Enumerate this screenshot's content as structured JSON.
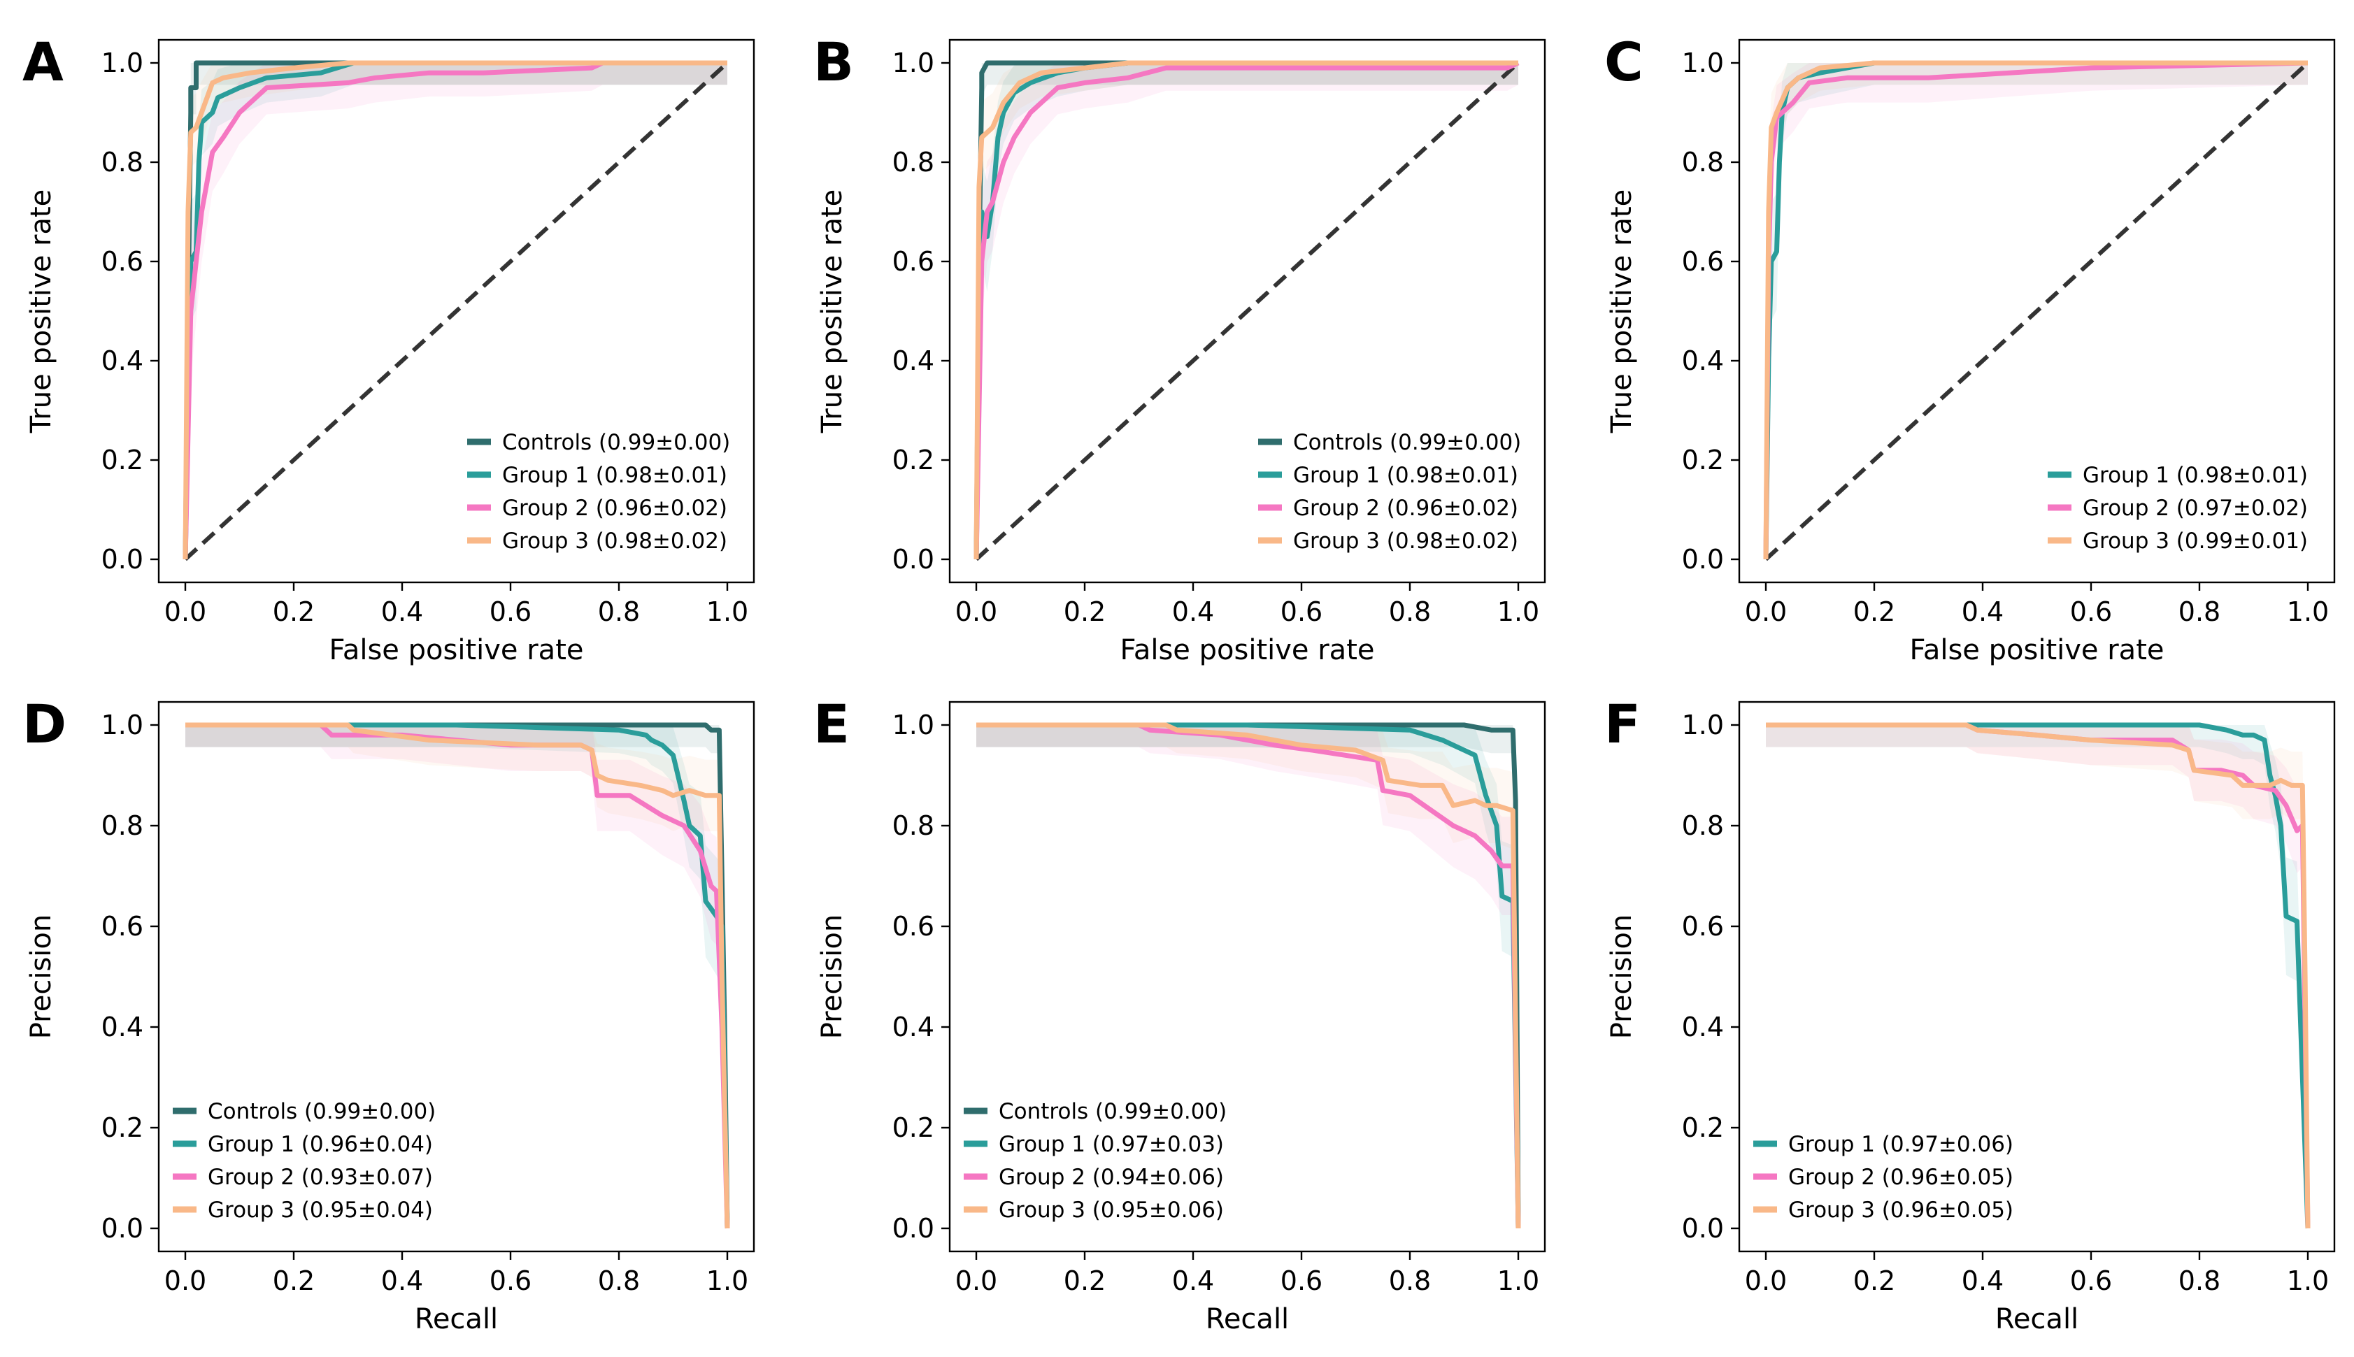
{
  "figure": {
    "colors": {
      "controls": "#2f6d6d",
      "group1": "#2a9d9a",
      "group2": "#f577c2",
      "group3": "#f9b888",
      "diagonal": "#333333"
    }
  },
  "chart_data": [
    {
      "panel": "A",
      "type": "line",
      "xlabel": "False positive rate",
      "ylabel": "True positive rate",
      "xlim": [
        0,
        1
      ],
      "ylim": [
        0,
        1
      ],
      "xticks": [
        "0.0",
        "0.2",
        "0.4",
        "0.6",
        "0.8",
        "1.0"
      ],
      "yticks": [
        "0.0",
        "0.2",
        "0.4",
        "0.6",
        "0.8",
        "1.0"
      ],
      "legend_position": "lower-right",
      "diagonal": true,
      "series": [
        {
          "name": "Controls (0.99±0.00)",
          "key": "controls",
          "x": [
            0,
            0.005,
            0.01,
            0.01,
            0.02,
            0.02,
            0.05,
            0.1,
            0.32,
            1.0
          ],
          "y": [
            0,
            0.5,
            0.9,
            0.95,
            0.95,
            1.0,
            1.0,
            1.0,
            1.0,
            1.0
          ]
        },
        {
          "name": "Group 1 (0.98±0.01)",
          "key": "group1",
          "x": [
            0,
            0.005,
            0.01,
            0.02,
            0.025,
            0.03,
            0.05,
            0.06,
            0.1,
            0.15,
            0.25,
            0.31,
            1.0
          ],
          "y": [
            0,
            0.3,
            0.6,
            0.62,
            0.8,
            0.88,
            0.9,
            0.93,
            0.95,
            0.97,
            0.98,
            1.0,
            1.0
          ]
        },
        {
          "name": "Group 2 (0.96±0.02)",
          "key": "group2",
          "x": [
            0,
            0.01,
            0.02,
            0.03,
            0.05,
            0.07,
            0.1,
            0.15,
            0.3,
            0.35,
            0.45,
            0.55,
            0.75,
            0.77,
            1.0
          ],
          "y": [
            0,
            0.5,
            0.6,
            0.7,
            0.82,
            0.85,
            0.9,
            0.95,
            0.96,
            0.97,
            0.98,
            0.98,
            0.99,
            1.0,
            1.0
          ]
        },
        {
          "name": "Group 3 (0.98±0.02)",
          "key": "group3",
          "x": [
            0,
            0.005,
            0.01,
            0.02,
            0.03,
            0.05,
            0.07,
            0.12,
            0.2,
            0.3,
            1.0
          ],
          "y": [
            0,
            0.7,
            0.86,
            0.87,
            0.9,
            0.96,
            0.97,
            0.98,
            0.99,
            1.0,
            1.0
          ]
        }
      ]
    },
    {
      "panel": "B",
      "type": "line",
      "xlabel": "False positive rate",
      "ylabel": "True positive rate",
      "xlim": [
        0,
        1
      ],
      "ylim": [
        0,
        1
      ],
      "xticks": [
        "0.0",
        "0.2",
        "0.4",
        "0.6",
        "0.8",
        "1.0"
      ],
      "yticks": [
        "0.0",
        "0.2",
        "0.4",
        "0.6",
        "0.8",
        "1.0"
      ],
      "legend_position": "lower-right",
      "diagonal": true,
      "series": [
        {
          "name": "Controls (0.99±0.00)",
          "key": "controls",
          "x": [
            0,
            0.005,
            0.01,
            0.01,
            0.02,
            0.05,
            0.1,
            0.28,
            1.0
          ],
          "y": [
            0,
            0.6,
            0.95,
            0.98,
            1.0,
            1.0,
            1.0,
            1.0,
            1.0
          ]
        },
        {
          "name": "Group 1 (0.98±0.01)",
          "key": "group1",
          "x": [
            0,
            0.005,
            0.01,
            0.02,
            0.03,
            0.04,
            0.05,
            0.07,
            0.1,
            0.15,
            0.2,
            0.28,
            1.0
          ],
          "y": [
            0,
            0.4,
            0.7,
            0.65,
            0.72,
            0.85,
            0.9,
            0.94,
            0.96,
            0.98,
            0.99,
            1.0,
            1.0
          ]
        },
        {
          "name": "Group 2 (0.96±0.02)",
          "key": "group2",
          "x": [
            0,
            0.01,
            0.02,
            0.03,
            0.05,
            0.07,
            0.1,
            0.15,
            0.2,
            0.28,
            0.35,
            0.98,
            1.0
          ],
          "y": [
            0,
            0.6,
            0.7,
            0.72,
            0.8,
            0.85,
            0.9,
            0.95,
            0.96,
            0.97,
            0.99,
            0.99,
            1.0
          ]
        },
        {
          "name": "Group 3 (0.98±0.02)",
          "key": "group3",
          "x": [
            0,
            0.005,
            0.01,
            0.03,
            0.05,
            0.08,
            0.12,
            0.2,
            0.28,
            1.0
          ],
          "y": [
            0,
            0.75,
            0.85,
            0.87,
            0.92,
            0.96,
            0.98,
            0.99,
            1.0,
            1.0
          ]
        }
      ]
    },
    {
      "panel": "C",
      "type": "line",
      "xlabel": "False positive rate",
      "ylabel": "True positive rate",
      "xlim": [
        0,
        1
      ],
      "ylim": [
        0,
        1
      ],
      "xticks": [
        "0.0",
        "0.2",
        "0.4",
        "0.6",
        "0.8",
        "1.0"
      ],
      "yticks": [
        "0.0",
        "0.2",
        "0.4",
        "0.6",
        "0.8",
        "1.0"
      ],
      "legend_position": "lower-right",
      "diagonal": true,
      "series": [
        {
          "name": "Group 1 (0.98±0.01)",
          "key": "group1",
          "x": [
            0,
            0.005,
            0.01,
            0.02,
            0.025,
            0.03,
            0.04,
            0.06,
            0.1,
            0.15,
            0.2,
            1.0
          ],
          "y": [
            0,
            0.4,
            0.6,
            0.62,
            0.8,
            0.9,
            0.95,
            0.97,
            0.98,
            0.99,
            1.0,
            1.0
          ]
        },
        {
          "name": "Group 2 (0.97±0.02)",
          "key": "group2",
          "x": [
            0,
            0.005,
            0.01,
            0.02,
            0.03,
            0.05,
            0.08,
            0.15,
            0.3,
            0.45,
            0.6,
            1.0
          ],
          "y": [
            0,
            0.6,
            0.8,
            0.89,
            0.9,
            0.92,
            0.96,
            0.97,
            0.97,
            0.98,
            0.99,
            1.0
          ]
        },
        {
          "name": "Group 3 (0.99±0.01)",
          "key": "group3",
          "x": [
            0,
            0.005,
            0.01,
            0.02,
            0.04,
            0.06,
            0.1,
            0.2,
            0.3,
            1.0
          ],
          "y": [
            0,
            0.7,
            0.87,
            0.9,
            0.95,
            0.97,
            0.99,
            1.0,
            1.0,
            1.0
          ]
        }
      ]
    },
    {
      "panel": "D",
      "type": "line",
      "xlabel": "Recall",
      "ylabel": "Precision",
      "xlim": [
        0,
        1
      ],
      "ylim": [
        0,
        1
      ],
      "xticks": [
        "0.0",
        "0.2",
        "0.4",
        "0.6",
        "0.8",
        "1.0"
      ],
      "yticks": [
        "0.0",
        "0.2",
        "0.4",
        "0.6",
        "0.8",
        "1.0"
      ],
      "legend_position": "lower-left",
      "diagonal": false,
      "series": [
        {
          "name": "Controls (0.99±0.00)",
          "key": "controls",
          "x": [
            0,
            0.5,
            0.9,
            0.96,
            0.97,
            0.985,
            0.99,
            0.995,
            1.0
          ],
          "y": [
            1.0,
            1.0,
            1.0,
            1.0,
            0.99,
            0.99,
            0.7,
            0.4,
            0.0
          ]
        },
        {
          "name": "Group 1 (0.96±0.04)",
          "key": "group1",
          "x": [
            0,
            0.5,
            0.8,
            0.85,
            0.86,
            0.88,
            0.9,
            0.92,
            0.93,
            0.95,
            0.96,
            0.98,
            0.99,
            1.0
          ],
          "y": [
            1.0,
            1.0,
            0.99,
            0.98,
            0.97,
            0.96,
            0.94,
            0.85,
            0.8,
            0.78,
            0.65,
            0.62,
            0.6,
            0.0
          ]
        },
        {
          "name": "Group 2 (0.93±0.07)",
          "key": "group2",
          "x": [
            0,
            0.25,
            0.27,
            0.4,
            0.5,
            0.6,
            0.73,
            0.75,
            0.76,
            0.82,
            0.88,
            0.92,
            0.95,
            0.97,
            0.98,
            0.99,
            1.0
          ],
          "y": [
            1.0,
            1.0,
            0.98,
            0.98,
            0.97,
            0.96,
            0.96,
            0.95,
            0.86,
            0.86,
            0.82,
            0.8,
            0.75,
            0.68,
            0.67,
            0.4,
            0.0
          ]
        },
        {
          "name": "Group 3 (0.95±0.04)",
          "key": "group3",
          "x": [
            0,
            0.3,
            0.31,
            0.45,
            0.65,
            0.73,
            0.75,
            0.76,
            0.78,
            0.84,
            0.88,
            0.9,
            0.93,
            0.96,
            0.985,
            0.99,
            1.0
          ],
          "y": [
            1.0,
            1.0,
            0.99,
            0.97,
            0.96,
            0.96,
            0.95,
            0.9,
            0.89,
            0.88,
            0.87,
            0.86,
            0.87,
            0.86,
            0.86,
            0.5,
            0.0
          ]
        }
      ]
    },
    {
      "panel": "E",
      "type": "line",
      "xlabel": "Recall",
      "ylabel": "Precision",
      "xlim": [
        0,
        1
      ],
      "ylim": [
        0,
        1
      ],
      "xticks": [
        "0.0",
        "0.2",
        "0.4",
        "0.6",
        "0.8",
        "1.0"
      ],
      "yticks": [
        "0.0",
        "0.2",
        "0.4",
        "0.6",
        "0.8",
        "1.0"
      ],
      "legend_position": "lower-left",
      "diagonal": false,
      "series": [
        {
          "name": "Controls (0.99±0.00)",
          "key": "controls",
          "x": [
            0,
            0.5,
            0.9,
            0.95,
            0.96,
            0.99,
            0.995,
            1.0
          ],
          "y": [
            1.0,
            1.0,
            1.0,
            0.99,
            0.99,
            0.99,
            0.85,
            0.0
          ]
        },
        {
          "name": "Group 1 (0.97±0.03)",
          "key": "group1",
          "x": [
            0,
            0.5,
            0.8,
            0.83,
            0.86,
            0.88,
            0.9,
            0.92,
            0.94,
            0.96,
            0.97,
            0.99,
            1.0
          ],
          "y": [
            1.0,
            1.0,
            0.99,
            0.98,
            0.97,
            0.96,
            0.95,
            0.94,
            0.86,
            0.8,
            0.66,
            0.65,
            0.0
          ]
        },
        {
          "name": "Group 2 (0.94±0.06)",
          "key": "group2",
          "x": [
            0,
            0.3,
            0.32,
            0.45,
            0.55,
            0.62,
            0.68,
            0.74,
            0.75,
            0.8,
            0.84,
            0.88,
            0.92,
            0.95,
            0.97,
            0.99,
            1.0
          ],
          "y": [
            1.0,
            1.0,
            0.99,
            0.98,
            0.96,
            0.95,
            0.94,
            0.93,
            0.87,
            0.86,
            0.83,
            0.8,
            0.78,
            0.75,
            0.72,
            0.72,
            0.0
          ]
        },
        {
          "name": "Group 3 (0.95±0.06)",
          "key": "group3",
          "x": [
            0,
            0.35,
            0.37,
            0.5,
            0.6,
            0.7,
            0.75,
            0.76,
            0.82,
            0.86,
            0.88,
            0.92,
            0.94,
            0.96,
            0.99,
            1.0
          ],
          "y": [
            1.0,
            1.0,
            0.99,
            0.98,
            0.96,
            0.95,
            0.93,
            0.89,
            0.88,
            0.88,
            0.84,
            0.85,
            0.84,
            0.84,
            0.83,
            0.0
          ]
        }
      ]
    },
    {
      "panel": "F",
      "type": "line",
      "xlabel": "Recall",
      "ylabel": "Precision",
      "xlim": [
        0,
        1
      ],
      "ylim": [
        0,
        1
      ],
      "xticks": [
        "0.0",
        "0.2",
        "0.4",
        "0.6",
        "0.8",
        "1.0"
      ],
      "yticks": [
        "0.0",
        "0.2",
        "0.4",
        "0.6",
        "0.8",
        "1.0"
      ],
      "legend_position": "lower-left",
      "diagonal": false,
      "series": [
        {
          "name": "Group 1 (0.97±0.06)",
          "key": "group1",
          "x": [
            0,
            0.5,
            0.8,
            0.85,
            0.88,
            0.9,
            0.92,
            0.93,
            0.94,
            0.95,
            0.96,
            0.98,
            0.99,
            1.0
          ],
          "y": [
            1.0,
            1.0,
            1.0,
            0.99,
            0.98,
            0.98,
            0.97,
            0.9,
            0.86,
            0.8,
            0.62,
            0.61,
            0.3,
            0.0
          ]
        },
        {
          "name": "Group 2 (0.96±0.05)",
          "key": "group2",
          "x": [
            0,
            0.37,
            0.39,
            0.5,
            0.6,
            0.75,
            0.78,
            0.79,
            0.84,
            0.88,
            0.9,
            0.94,
            0.96,
            0.98,
            0.99,
            1.0
          ],
          "y": [
            1.0,
            1.0,
            0.99,
            0.98,
            0.97,
            0.97,
            0.95,
            0.91,
            0.91,
            0.9,
            0.88,
            0.87,
            0.84,
            0.79,
            0.8,
            0.0
          ]
        },
        {
          "name": "Group 3 (0.96±0.05)",
          "key": "group3",
          "x": [
            0,
            0.37,
            0.39,
            0.5,
            0.6,
            0.75,
            0.78,
            0.79,
            0.86,
            0.88,
            0.91,
            0.93,
            0.95,
            0.97,
            0.99,
            0.995,
            1.0
          ],
          "y": [
            1.0,
            1.0,
            0.99,
            0.98,
            0.97,
            0.96,
            0.95,
            0.91,
            0.9,
            0.88,
            0.88,
            0.88,
            0.89,
            0.88,
            0.88,
            0.5,
            0.0
          ]
        }
      ]
    }
  ]
}
